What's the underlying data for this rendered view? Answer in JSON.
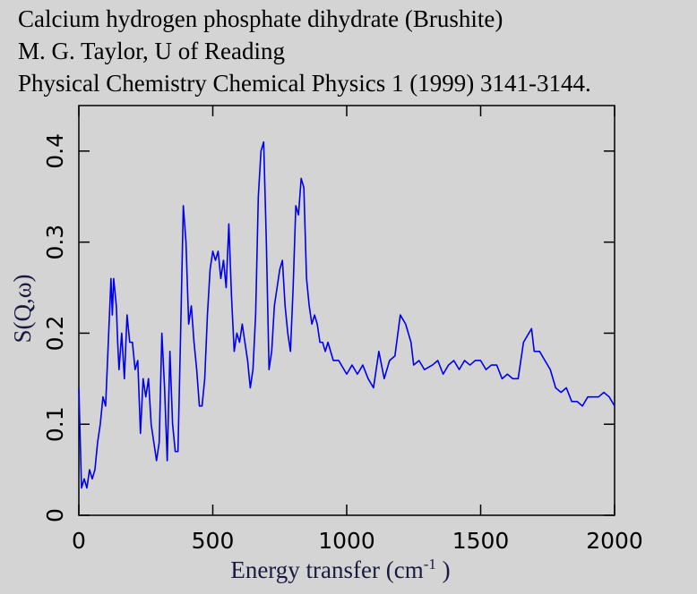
{
  "chart_data": {
    "type": "line",
    "title": [
      "Calcium hydrogen phosphate dihydrate (Brushite)",
      "M. G. Taylor, U of Reading",
      "Physical Chemistry Chemical Physics 1 (1999) 3141-3144."
    ],
    "xlabel": {
      "text": "Energy transfer (cm",
      "superscript": "-1",
      "suffix": " )"
    },
    "ylabel": "S(Q,ω)",
    "xlim": [
      0,
      2000
    ],
    "ylim": [
      0,
      0.45
    ],
    "xticks": [
      0,
      500,
      1000,
      1500,
      2000
    ],
    "yticks": [
      0,
      0.1,
      0.2,
      0.3,
      0.4
    ],
    "x": [
      0,
      10,
      20,
      30,
      40,
      50,
      60,
      70,
      80,
      90,
      100,
      110,
      120,
      125,
      130,
      140,
      145,
      150,
      160,
      170,
      180,
      190,
      200,
      210,
      220,
      230,
      240,
      250,
      260,
      270,
      280,
      290,
      300,
      310,
      320,
      330,
      340,
      350,
      360,
      370,
      380,
      390,
      400,
      410,
      420,
      430,
      440,
      450,
      460,
      470,
      480,
      490,
      500,
      510,
      520,
      530,
      540,
      550,
      560,
      570,
      580,
      590,
      600,
      610,
      620,
      630,
      640,
      650,
      660,
      670,
      680,
      690,
      700,
      710,
      720,
      730,
      740,
      750,
      760,
      770,
      780,
      790,
      800,
      810,
      820,
      830,
      840,
      850,
      860,
      870,
      880,
      890,
      900,
      910,
      920,
      930,
      950,
      970,
      990,
      1000,
      1020,
      1040,
      1060,
      1080,
      1100,
      1120,
      1140,
      1160,
      1180,
      1200,
      1220,
      1240,
      1250,
      1270,
      1290,
      1320,
      1340,
      1360,
      1380,
      1400,
      1420,
      1440,
      1460,
      1480,
      1500,
      1520,
      1540,
      1560,
      1580,
      1600,
      1620,
      1640,
      1660,
      1680,
      1690,
      1700,
      1720,
      1740,
      1760,
      1780,
      1800,
      1820,
      1840,
      1860,
      1880,
      1900,
      1920,
      1940,
      1960,
      1980,
      2000
    ],
    "series": [
      {
        "name": "S(Q,ω)",
        "color": "#0000f0",
        "values": [
          0.14,
          0.03,
          0.04,
          0.03,
          0.05,
          0.04,
          0.05,
          0.08,
          0.1,
          0.13,
          0.12,
          0.19,
          0.26,
          0.22,
          0.26,
          0.23,
          0.19,
          0.16,
          0.2,
          0.15,
          0.22,
          0.19,
          0.19,
          0.16,
          0.17,
          0.09,
          0.15,
          0.13,
          0.15,
          0.1,
          0.08,
          0.06,
          0.08,
          0.2,
          0.14,
          0.06,
          0.18,
          0.1,
          0.07,
          0.07,
          0.2,
          0.34,
          0.3,
          0.21,
          0.23,
          0.19,
          0.16,
          0.12,
          0.12,
          0.15,
          0.22,
          0.27,
          0.29,
          0.28,
          0.29,
          0.26,
          0.28,
          0.25,
          0.32,
          0.24,
          0.18,
          0.2,
          0.19,
          0.21,
          0.19,
          0.17,
          0.14,
          0.16,
          0.22,
          0.35,
          0.4,
          0.41,
          0.3,
          0.16,
          0.18,
          0.23,
          0.25,
          0.27,
          0.28,
          0.23,
          0.2,
          0.18,
          0.25,
          0.34,
          0.33,
          0.37,
          0.36,
          0.26,
          0.23,
          0.21,
          0.22,
          0.21,
          0.19,
          0.19,
          0.18,
          0.19,
          0.17,
          0.17,
          0.16,
          0.155,
          0.165,
          0.155,
          0.165,
          0.15,
          0.14,
          0.18,
          0.15,
          0.17,
          0.175,
          0.22,
          0.21,
          0.19,
          0.165,
          0.17,
          0.16,
          0.165,
          0.17,
          0.155,
          0.165,
          0.17,
          0.16,
          0.17,
          0.165,
          0.17,
          0.17,
          0.16,
          0.165,
          0.165,
          0.15,
          0.155,
          0.15,
          0.15,
          0.19,
          0.2,
          0.205,
          0.18,
          0.18,
          0.17,
          0.16,
          0.14,
          0.135,
          0.14,
          0.125,
          0.125,
          0.12,
          0.13,
          0.13,
          0.13,
          0.135,
          0.13,
          0.12
        ]
      }
    ]
  }
}
